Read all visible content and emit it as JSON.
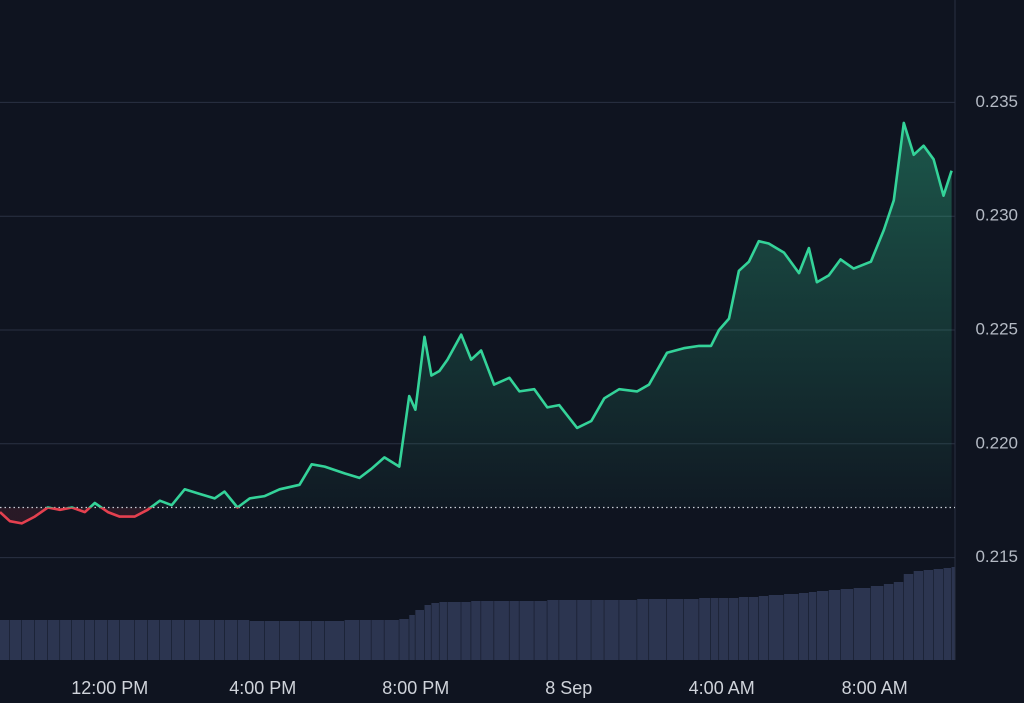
{
  "chart_data": {
    "type": "line",
    "x": [
      9.13,
      9.39,
      9.7,
      10.04,
      10.38,
      10.7,
      11.01,
      11.35,
      11.61,
      11.95,
      12.26,
      12.65,
      12.99,
      13.31,
      13.62,
      13.96,
      14.35,
      14.74,
      15.0,
      15.34,
      15.66,
      16.05,
      16.44,
      16.96,
      17.28,
      17.62,
      18.14,
      18.53,
      18.84,
      19.18,
      19.57,
      19.83,
      19.99,
      20.23,
      20.41,
      20.62,
      20.83,
      21.19,
      21.45,
      21.71,
      22.05,
      22.45,
      22.71,
      23.1,
      23.44,
      23.75,
      24.22,
      24.59,
      24.93,
      25.32,
      25.79,
      26.1,
      26.57,
      27.01,
      27.41,
      27.72,
      27.93,
      28.19,
      28.45,
      28.71,
      28.97,
      29.23,
      29.63,
      30.02,
      30.28,
      30.49,
      30.8,
      31.11,
      31.45,
      31.9,
      32.24,
      32.5,
      32.76,
      33.02,
      33.28,
      33.54,
      33.8,
      34.01
    ],
    "series": [
      {
        "color": "#34d399",
        "below_color": "#e5404f",
        "values": [
          0.217,
          0.2166,
          0.2165,
          0.2168,
          0.2172,
          0.2171,
          0.2172,
          0.217,
          0.2174,
          0.217,
          0.2168,
          0.2168,
          0.2171,
          0.2175,
          0.2173,
          0.218,
          0.2178,
          0.2176,
          0.2179,
          0.2172,
          0.2176,
          0.2177,
          0.218,
          0.2182,
          0.2191,
          0.219,
          0.2187,
          0.2185,
          0.2189,
          0.2194,
          0.219,
          0.2221,
          0.2215,
          0.2247,
          0.223,
          0.2232,
          0.2237,
          0.2248,
          0.2237,
          0.2241,
          0.2226,
          0.2229,
          0.2223,
          0.2224,
          0.2216,
          0.2217,
          0.2207,
          0.221,
          0.222,
          0.2224,
          0.2223,
          0.2226,
          0.224,
          0.2242,
          0.2243,
          0.2243,
          0.225,
          0.2255,
          0.2276,
          0.228,
          0.2289,
          0.2288,
          0.2284,
          0.2275,
          0.2286,
          0.2271,
          0.2274,
          0.2281,
          0.2277,
          0.228,
          0.2294,
          0.2307,
          0.2341,
          0.2327,
          0.2331,
          0.2325,
          0.2309,
          0.232
        ]
      }
    ],
    "reference": 0.2172,
    "volume": {
      "color": "#2c3550",
      "lim": [
        0,
        100
      ],
      "values": [
        40,
        40,
        40,
        40,
        40,
        40,
        40,
        40,
        40,
        40,
        40,
        40,
        40,
        40,
        40,
        40,
        40,
        40,
        40,
        40,
        39,
        39,
        39,
        39,
        39,
        39,
        40,
        40,
        40,
        40,
        41,
        45,
        50,
        55,
        57,
        58,
        58,
        58,
        59,
        59,
        59,
        59,
        59,
        59,
        60,
        60,
        60,
        60,
        60,
        60,
        61,
        61,
        61,
        61,
        62,
        62,
        62,
        62,
        63,
        63,
        64,
        65,
        66,
        67,
        68,
        69,
        70,
        71,
        72,
        74,
        76,
        78,
        86,
        89,
        90,
        91,
        92,
        93
      ]
    },
    "xlim": [
      9.13,
      34.1
    ],
    "xticks": [
      {
        "value": 12,
        "label": "12:00 PM"
      },
      {
        "value": 16,
        "label": "4:00 PM"
      },
      {
        "value": 20,
        "label": "8:00 PM"
      },
      {
        "value": 24,
        "label": "8 Sep"
      },
      {
        "value": 28,
        "label": "4:00 AM"
      },
      {
        "value": 32,
        "label": "8:00 AM"
      }
    ],
    "ylim": [
      0.2105,
      0.2395
    ],
    "yticks": [
      0.215,
      {
        "value": 0.22,
        "label": "0.220"
      },
      0.225,
      {
        "value": 0.23,
        "label": "0.230"
      },
      0.235
    ],
    "grid": true
  }
}
